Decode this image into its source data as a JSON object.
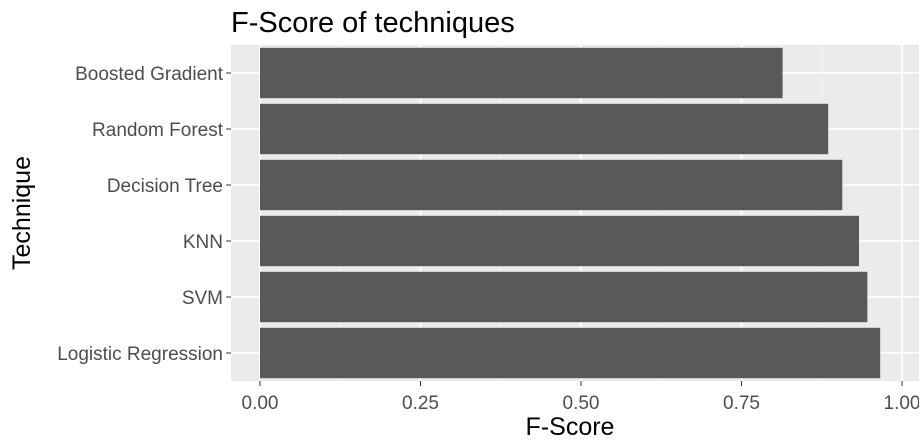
{
  "chart_data": {
    "type": "bar",
    "orientation": "horizontal",
    "title": "F-Score of techniques",
    "xlabel": "F-Score",
    "ylabel": "Technique",
    "categories": [
      "Boosted Gradient",
      "Random Forest",
      "Decision Tree",
      "KNN",
      "SVM",
      "Logistic Regression"
    ],
    "values": [
      0.814,
      0.885,
      0.907,
      0.933,
      0.946,
      0.966
    ],
    "xlim": [
      -0.05,
      1.0
    ],
    "xticks": [
      0.0,
      0.25,
      0.5,
      0.75,
      1.0
    ],
    "xtick_labels": [
      "0.00",
      "0.25",
      "0.50",
      "0.75",
      "1.00"
    ],
    "grid": true,
    "colors": {
      "bar": "#595959",
      "panel": "#ebebeb",
      "grid_major": "#ffffff",
      "grid_minor": "#f4f4f4",
      "tick": "#333333"
    }
  }
}
